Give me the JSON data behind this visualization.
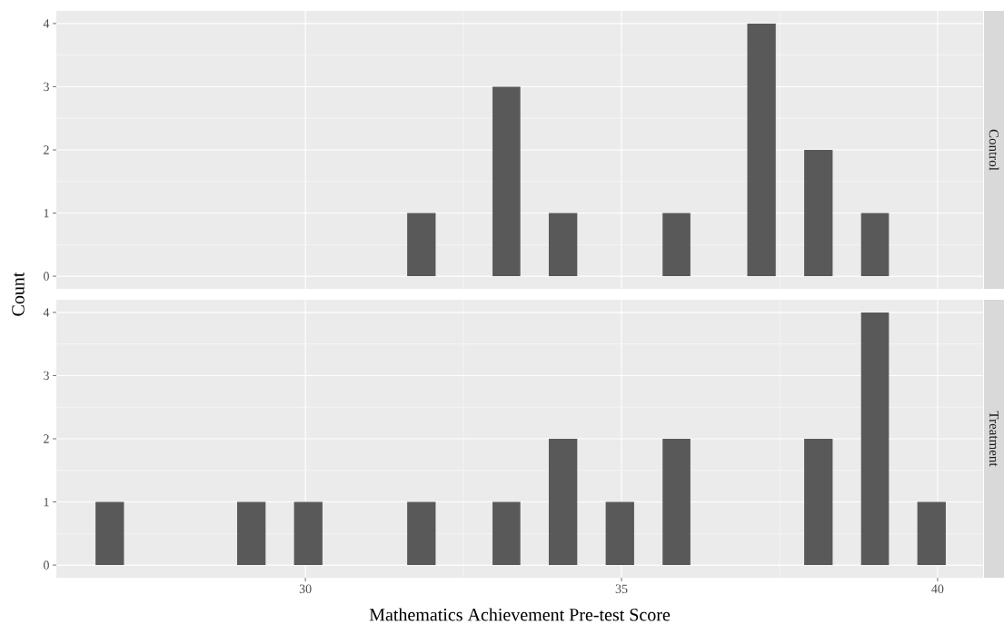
{
  "chart_data": [
    {
      "type": "histogram",
      "title": "Control",
      "ylabel": "Count",
      "color": "#595959",
      "bins": [
        31.61,
        32.06,
        32.96,
        33.4,
        33.85,
        34.3,
        35.65,
        36.09,
        36.99,
        37.44,
        37.89,
        38.34,
        38.79,
        39.23
      ],
      "values": [
        1,
        0,
        3,
        0,
        1,
        0,
        1,
        0,
        4,
        0,
        2,
        0,
        1
      ],
      "xlim": [
        26.06,
        40.72
      ],
      "ylim": [
        -0.2,
        4.2
      ],
      "xticks": [
        30,
        35,
        40
      ],
      "yticks": [
        0,
        1,
        2,
        3,
        4
      ],
      "grid": true,
      "tick_labels": "y"
    },
    {
      "type": "histogram",
      "title": "Treatment",
      "xlabel": "Mathematics Achievement Pre-test Score",
      "color": "#595959",
      "bins": [
        26.68,
        27.13,
        28.92,
        29.37,
        29.82,
        30.27,
        31.61,
        32.06,
        32.96,
        33.4,
        33.85,
        34.3,
        34.75,
        35.2,
        35.65,
        36.09,
        37.89,
        38.34,
        38.79,
        39.23,
        39.68,
        40.13
      ],
      "values": [
        1,
        0,
        1,
        0,
        1,
        0,
        1,
        0,
        1,
        0,
        2,
        0,
        1,
        0,
        2,
        0,
        2,
        0,
        4,
        0,
        1
      ],
      "xlim": [
        26.06,
        40.72
      ],
      "ylim": [
        -0.2,
        4.2
      ],
      "xticks": [
        30,
        35,
        40
      ],
      "yticks": [
        0,
        1,
        2,
        3,
        4
      ],
      "grid": true
    }
  ]
}
